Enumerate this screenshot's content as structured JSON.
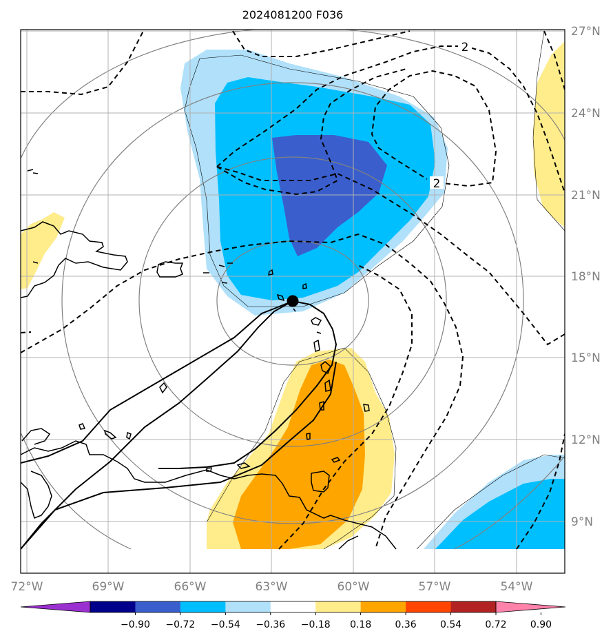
{
  "title": "2024081200 F036",
  "axes": {
    "lon_labels": [
      "72°W",
      "69°W",
      "66°W",
      "63°W",
      "60°W",
      "57°W",
      "54°W"
    ],
    "lat_labels": [
      "27°N",
      "24°N",
      "21°N",
      "18°N",
      "15°N",
      "12°N",
      "9°N"
    ],
    "tick_color": "#808080"
  },
  "contour_labels": [
    "2",
    "2"
  ],
  "shading_colors": {
    "light_yellow": "#ffec8b",
    "orange": "#ffa500",
    "light_blue": "#b0e0fa",
    "deep_sky_blue": "#00bfff",
    "royal_blue": "#3a5fcd"
  },
  "colorbar": {
    "colors": [
      "#9b30d0",
      "#00008b",
      "#3a5fcd",
      "#00bfff",
      "#b0e0fa",
      "#ffffff",
      "#ffec8b",
      "#ffa500",
      "#ff4500",
      "#b22222",
      "#ff82ab"
    ],
    "tick_labels": [
      "−0.90",
      "−0.72",
      "−0.54",
      "−0.36",
      "−0.18",
      "0.18",
      "0.36",
      "0.54",
      "0.72",
      "0.90"
    ]
  },
  "storm_marker": {
    "lon": -62.3,
    "lat": 17.1
  }
}
